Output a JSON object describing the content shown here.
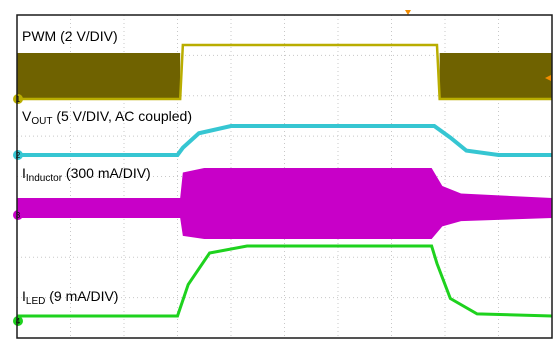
{
  "chart_data": {
    "type": "line",
    "title": "",
    "xlabel": "",
    "ylabel": "",
    "grid": true,
    "grid_divisions": {
      "x": 10,
      "y": 8
    },
    "colors": {
      "background": "#ffffff",
      "frame": "#1a1a1a",
      "grid": "#c8c8c8",
      "pwm": "#b9ad00",
      "pwm_fill": "#6f6200",
      "vout": "#36c6d2",
      "inductor": "#c800c8",
      "led": "#1ed21e",
      "trigger": "#f28c00"
    },
    "channels": [
      {
        "name": "PWM",
        "label": {
          "main": "PWM (2 V/DIV)",
          "sub": "",
          "suffix": ""
        },
        "ground_marker": "1",
        "description_kind": "switching"
      },
      {
        "name": "VOUT",
        "label": {
          "main": "V",
          "sub": "OUT",
          "suffix": " (5 V/DIV, AC coupled)"
        },
        "ground_marker": "2"
      },
      {
        "name": "IInductor",
        "label": {
          "main": "I",
          "sub": "Inductor",
          "suffix": " (300 mA/DIV)"
        },
        "ground_marker": "3"
      },
      {
        "name": "ILED",
        "label": {
          "main": "I",
          "sub": "LED",
          "suffix": " (9 mA/DIV)"
        },
        "ground_marker": "4"
      }
    ],
    "series": [
      {
        "name": "PWM",
        "x": [
          0,
          3.05,
          3.1,
          7.85,
          7.9,
          10
        ],
        "y": [
          0,
          0,
          1,
          1,
          0,
          0
        ]
      },
      {
        "name": "VOUT",
        "x": [
          0,
          3.0,
          3.1,
          3.4,
          4.0,
          7.8,
          8.1,
          8.4,
          9.0,
          10
        ],
        "y": [
          0,
          0,
          0.25,
          0.75,
          1,
          1,
          0.6,
          0.15,
          0,
          0
        ]
      },
      {
        "name": "IInductor",
        "x": [
          0,
          3.05,
          3.1,
          3.5,
          7.75,
          7.95,
          8.3,
          10
        ],
        "y": [
          0,
          0,
          0.85,
          1,
          1,
          0.4,
          0.15,
          0
        ]
      },
      {
        "name": "ILED",
        "x": [
          0,
          3.0,
          3.2,
          3.6,
          4.3,
          7.75,
          7.85,
          8.1,
          8.6,
          10
        ],
        "y": [
          0,
          0,
          0.45,
          0.9,
          1,
          1,
          0.75,
          0.25,
          0.03,
          0
        ]
      }
    ]
  }
}
